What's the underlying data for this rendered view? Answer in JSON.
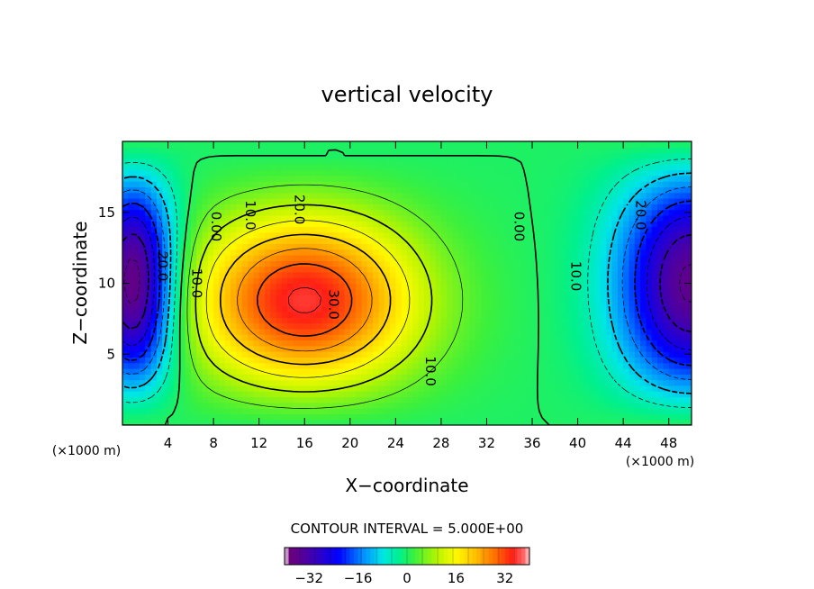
{
  "chart_data": {
    "type": "heatmap",
    "title": "vertical velocity",
    "xlabel": "X−coordinate",
    "ylabel": "Z−coordinate",
    "x_unit": "(×1000 m)",
    "z_unit": "(×1000 m)",
    "xlim": [
      0,
      50
    ],
    "zlim": [
      0,
      20
    ],
    "x_ticks": [
      "4",
      "8",
      "12",
      "16",
      "20",
      "24",
      "28",
      "32",
      "36",
      "40",
      "44",
      "48"
    ],
    "z_ticks": [
      "5",
      "10",
      "15"
    ],
    "contour_interval_text": "CONTOUR INTERVAL = 5.000E+00",
    "contour_interval": 5,
    "colorbar": {
      "ticks": [
        "−32",
        "−16",
        "0",
        "16",
        "32"
      ],
      "range": [
        -40,
        40
      ]
    },
    "value_range": [
      -40,
      40
    ],
    "features": [
      {
        "name": "downdraft-left",
        "x": 1,
        "z": 9.5,
        "value": -40
      },
      {
        "name": "updraft-center",
        "x": 16,
        "z": 8.5,
        "value": 36
      },
      {
        "name": "downdraft-right",
        "x": 50,
        "z": 10,
        "value": -36
      }
    ],
    "contour_labels": [
      {
        "text": "0.00",
        "x": 8.2,
        "z": 14
      },
      {
        "text": "10.0",
        "x": 11.2,
        "z": 14.8
      },
      {
        "text": "20.0",
        "x": 15.5,
        "z": 15.2
      },
      {
        "text": "30.0",
        "x": 18.5,
        "z": 8.5
      },
      {
        "text": "10.0",
        "x": 27,
        "z": 3.8
      },
      {
        "text": "0.00",
        "x": 34.8,
        "z": 14
      },
      {
        "text": "20.0",
        "x": 3.5,
        "z": 11.2
      },
      {
        "text": "10.0",
        "x": 6.5,
        "z": 10
      },
      {
        "text": "20.0",
        "x": 45.5,
        "z": 14.8
      },
      {
        "text": "10.0",
        "x": 39.8,
        "z": 10.5
      }
    ]
  }
}
